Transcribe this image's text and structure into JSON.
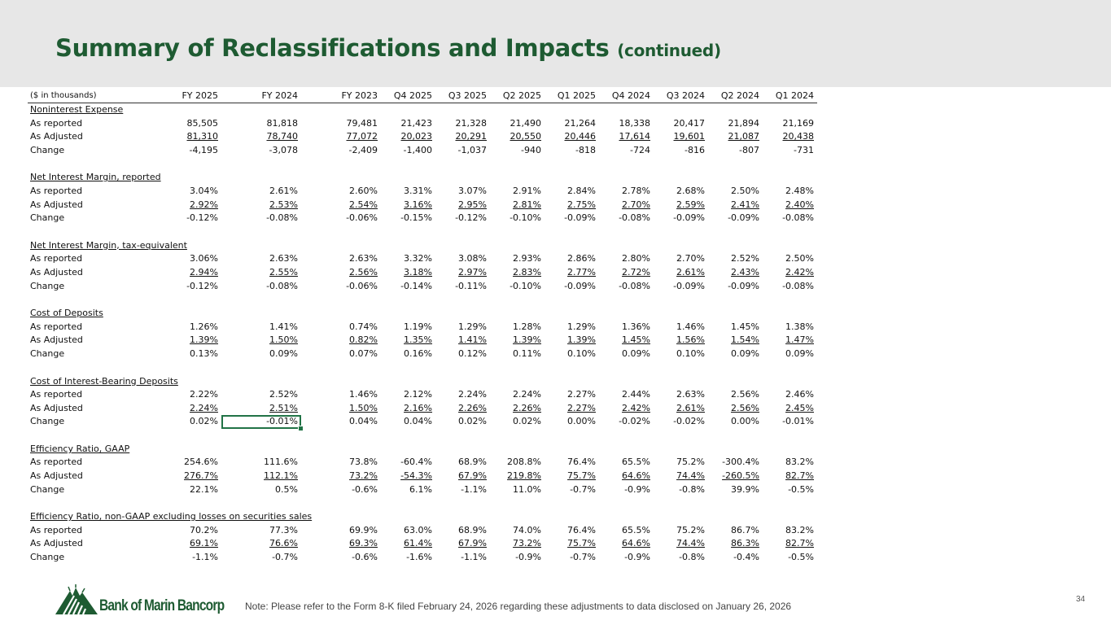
{
  "title": {
    "main": "Summary of Reclassifications and Impacts",
    "sub": "(continued)"
  },
  "units": "($ in thousands)",
  "columns": [
    "FY 2025",
    "FY 2024",
    "FY 2023",
    "Q4 2025",
    "Q3 2025",
    "Q2 2025",
    "Q1 2025",
    "Q4 2024",
    "Q3 2024",
    "Q2 2024",
    "Q1 2024"
  ],
  "row_labels": {
    "reported": "As reported",
    "adjusted": "As Adjusted",
    "change": "Change"
  },
  "sections": [
    {
      "name": "Noninterest Expense",
      "reported": [
        "85,505",
        "81,818",
        "79,481",
        "21,423",
        "21,328",
        "21,490",
        "21,264",
        "18,338",
        "20,417",
        "21,894",
        "21,169"
      ],
      "adjusted": [
        "81,310",
        "78,740",
        "77,072",
        "20,023",
        "20,291",
        "20,550",
        "20,446",
        "17,614",
        "19,601",
        "21,087",
        "20,438"
      ],
      "change": [
        "-4,195",
        "-3,078",
        "-2,409",
        "-1,400",
        "-1,037",
        "-940",
        "-818",
        "-724",
        "-816",
        "-807",
        "-731"
      ]
    },
    {
      "name": "Net Interest Margin, reported",
      "reported": [
        "3.04%",
        "2.61%",
        "2.60%",
        "3.31%",
        "3.07%",
        "2.91%",
        "2.84%",
        "2.78%",
        "2.68%",
        "2.50%",
        "2.48%"
      ],
      "adjusted": [
        "2.92%",
        "2.53%",
        "2.54%",
        "3.16%",
        "2.95%",
        "2.81%",
        "2.75%",
        "2.70%",
        "2.59%",
        "2.41%",
        "2.40%"
      ],
      "change": [
        "-0.12%",
        "-0.08%",
        "-0.06%",
        "-0.15%",
        "-0.12%",
        "-0.10%",
        "-0.09%",
        "-0.08%",
        "-0.09%",
        "-0.09%",
        "-0.08%"
      ]
    },
    {
      "name": "Net Interest Margin, tax-equivalent",
      "reported": [
        "3.06%",
        "2.63%",
        "2.63%",
        "3.32%",
        "3.08%",
        "2.93%",
        "2.86%",
        "2.80%",
        "2.70%",
        "2.52%",
        "2.50%"
      ],
      "adjusted": [
        "2.94%",
        "2.55%",
        "2.56%",
        "3.18%",
        "2.97%",
        "2.83%",
        "2.77%",
        "2.72%",
        "2.61%",
        "2.43%",
        "2.42%"
      ],
      "change": [
        "-0.12%",
        "-0.08%",
        "-0.06%",
        "-0.14%",
        "-0.11%",
        "-0.10%",
        "-0.09%",
        "-0.08%",
        "-0.09%",
        "-0.09%",
        "-0.08%"
      ]
    },
    {
      "name": "Cost of Deposits",
      "reported": [
        "1.26%",
        "1.41%",
        "0.74%",
        "1.19%",
        "1.29%",
        "1.28%",
        "1.29%",
        "1.36%",
        "1.46%",
        "1.45%",
        "1.38%"
      ],
      "adjusted": [
        "1.39%",
        "1.50%",
        "0.82%",
        "1.35%",
        "1.41%",
        "1.39%",
        "1.39%",
        "1.45%",
        "1.56%",
        "1.54%",
        "1.47%"
      ],
      "change": [
        "0.13%",
        "0.09%",
        "0.07%",
        "0.16%",
        "0.12%",
        "0.11%",
        "0.10%",
        "0.09%",
        "0.10%",
        "0.09%",
        "0.09%"
      ]
    },
    {
      "name": "Cost of Interest-Bearing Deposits",
      "reported": [
        "2.22%",
        "2.52%",
        "1.46%",
        "2.12%",
        "2.24%",
        "2.24%",
        "2.27%",
        "2.44%",
        "2.63%",
        "2.56%",
        "2.46%"
      ],
      "adjusted": [
        "2.24%",
        "2.51%",
        "1.50%",
        "2.16%",
        "2.26%",
        "2.26%",
        "2.27%",
        "2.42%",
        "2.61%",
        "2.56%",
        "2.45%"
      ],
      "change": [
        "0.02%",
        "-0.01%",
        "0.04%",
        "0.04%",
        "0.02%",
        "0.02%",
        "0.00%",
        "-0.02%",
        "-0.02%",
        "0.00%",
        "-0.01%"
      ]
    },
    {
      "name": "Efficiency Ratio, GAAP",
      "reported": [
        "254.6%",
        "111.6%",
        "73.8%",
        "-60.4%",
        "68.9%",
        "208.8%",
        "76.4%",
        "65.5%",
        "75.2%",
        "-300.4%",
        "83.2%"
      ],
      "adjusted": [
        "276.7%",
        "112.1%",
        "73.2%",
        "-54.3%",
        "67.9%",
        "219.8%",
        "75.7%",
        "64.6%",
        "74.4%",
        "-260.5%",
        "82.7%"
      ],
      "change": [
        "22.1%",
        "0.5%",
        "-0.6%",
        "6.1%",
        "-1.1%",
        "11.0%",
        "-0.7%",
        "-0.9%",
        "-0.8%",
        "39.9%",
        "-0.5%"
      ]
    },
    {
      "name": "Efficiency Ratio, non-GAAP excluding losses on securities sales",
      "reported": [
        "70.2%",
        "77.3%",
        "69.9%",
        "63.0%",
        "68.9%",
        "74.0%",
        "76.4%",
        "65.5%",
        "75.2%",
        "86.7%",
        "83.2%"
      ],
      "adjusted": [
        "69.1%",
        "76.6%",
        "69.3%",
        "61.4%",
        "67.9%",
        "73.2%",
        "75.7%",
        "64.6%",
        "74.4%",
        "86.3%",
        "82.7%"
      ],
      "change": [
        "-1.1%",
        "-0.7%",
        "-0.6%",
        "-1.6%",
        "-1.1%",
        "-0.9%",
        "-0.7%",
        "-0.9%",
        "-0.8%",
        "-0.4%",
        "-0.5%"
      ]
    }
  ],
  "logo_text": "Bank of Marin Bancorp",
  "note": "Note: Please refer to the Form 8-K filed February 24, 2026 regarding these adjustments to data disclosed on January 26, 2026",
  "page_number": "34",
  "colors": {
    "brand_green": "#1e5b32",
    "header_bg": "#e7e7e7",
    "selection": "#217346"
  }
}
